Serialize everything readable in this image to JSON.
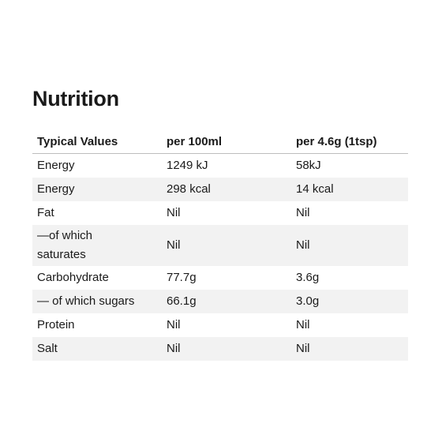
{
  "title": "Nutrition",
  "table": {
    "headers": [
      "Typical Values",
      "per 100ml",
      "per 4.6g (1tsp)"
    ],
    "rows": [
      {
        "label": "Energy",
        "per_100ml": "1249 kJ",
        "per_serving": "58kJ"
      },
      {
        "label": "Energy",
        "per_100ml": "298 kcal",
        "per_serving": "14 kcal"
      },
      {
        "label": "Fat",
        "per_100ml": "Nil",
        "per_serving": "Nil"
      },
      {
        "label": "—of which saturates",
        "per_100ml": "Nil",
        "per_serving": "Nil"
      },
      {
        "label": "Carbohydrate",
        "per_100ml": "77.7g",
        "per_serving": "3.6g"
      },
      {
        "label": "— of which sugars",
        "per_100ml": "66.1g",
        "per_serving": "3.0g"
      },
      {
        "label": "Protein",
        "per_100ml": "Nil",
        "per_serving": "Nil"
      },
      {
        "label": "Salt",
        "per_100ml": "Nil",
        "per_serving": "Nil"
      }
    ]
  }
}
